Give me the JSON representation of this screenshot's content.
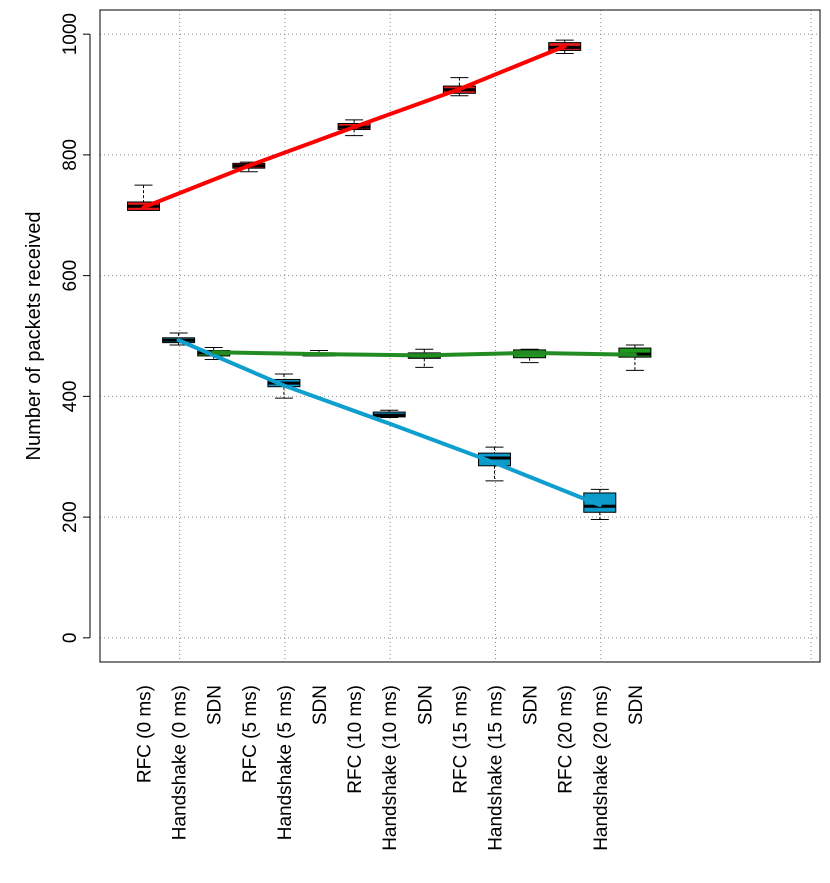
{
  "chart_data": {
    "type": "box",
    "title": "",
    "xlabel": "",
    "ylabel": "Number of packets received",
    "ylim": [
      -40,
      1040
    ],
    "yticks": [
      0,
      200,
      400,
      600,
      800,
      1000
    ],
    "grid": true,
    "categories": [
      "RFC (0 ms)",
      "Handshake (0 ms)",
      "SDN",
      "RFC (5 ms)",
      "Handshake (5 ms)",
      "SDN",
      "RFC (10 ms)",
      "Handshake (10 ms)",
      "SDN",
      "RFC (15 ms)",
      "Handshake (15 ms)",
      "SDN",
      "RFC (20 ms)",
      "Handshake (20 ms)",
      "SDN"
    ],
    "series": [
      {
        "name": "RFC",
        "color": "#e41a1c",
        "line_color": "#ff0000",
        "positions": [
          0,
          3,
          6,
          9,
          12
        ],
        "boxes": [
          {
            "min": 708,
            "q1": 708,
            "median": 715,
            "q3": 722,
            "max": 750
          },
          {
            "min": 772,
            "q1": 778,
            "median": 782,
            "q3": 786,
            "max": 788
          },
          {
            "min": 832,
            "q1": 842,
            "median": 846,
            "q3": 852,
            "max": 858
          },
          {
            "min": 898,
            "q1": 902,
            "median": 908,
            "q3": 914,
            "max": 928
          },
          {
            "min": 968,
            "q1": 973,
            "median": 978,
            "q3": 986,
            "max": 990
          }
        ],
        "line_values": [
          713,
          782,
          846,
          909,
          980
        ]
      },
      {
        "name": "Handshake",
        "color": "#0b9ac9",
        "line_color": "#0f9fce",
        "positions": [
          1,
          4,
          7,
          10,
          13
        ],
        "boxes": [
          {
            "min": 485,
            "q1": 489,
            "median": 493,
            "q3": 497,
            "max": 505
          },
          {
            "min": 397,
            "q1": 416,
            "median": 422,
            "q3": 428,
            "max": 437
          },
          {
            "min": 365,
            "q1": 366,
            "median": 369,
            "q3": 374,
            "max": 377
          },
          {
            "min": 260,
            "q1": 285,
            "median": 298,
            "q3": 306,
            "max": 316
          },
          {
            "min": 196,
            "q1": 208,
            "median": 218,
            "q3": 240,
            "max": 246
          }
        ],
        "line_values": [
          493,
          418,
          355,
          290,
          220
        ]
      },
      {
        "name": "SDN",
        "color": "#1f9a1f",
        "line_color": "#228b22",
        "positions": [
          2,
          5,
          8,
          11,
          14
        ],
        "boxes": [
          {
            "min": 461,
            "q1": 467,
            "median": 472,
            "q3": 476,
            "max": 481
          },
          {
            "min": 467,
            "q1": 467,
            "median": 470,
            "q3": 472,
            "max": 476
          },
          {
            "min": 448,
            "q1": 463,
            "median": 467,
            "q3": 472,
            "max": 478
          },
          {
            "min": 456,
            "q1": 464,
            "median": 471,
            "q3": 477,
            "max": 478
          },
          {
            "min": 443,
            "q1": 465,
            "median": 470,
            "q3": 480,
            "max": 485
          }
        ],
        "line_values": [
          473,
          470,
          468,
          472,
          469
        ]
      }
    ]
  }
}
